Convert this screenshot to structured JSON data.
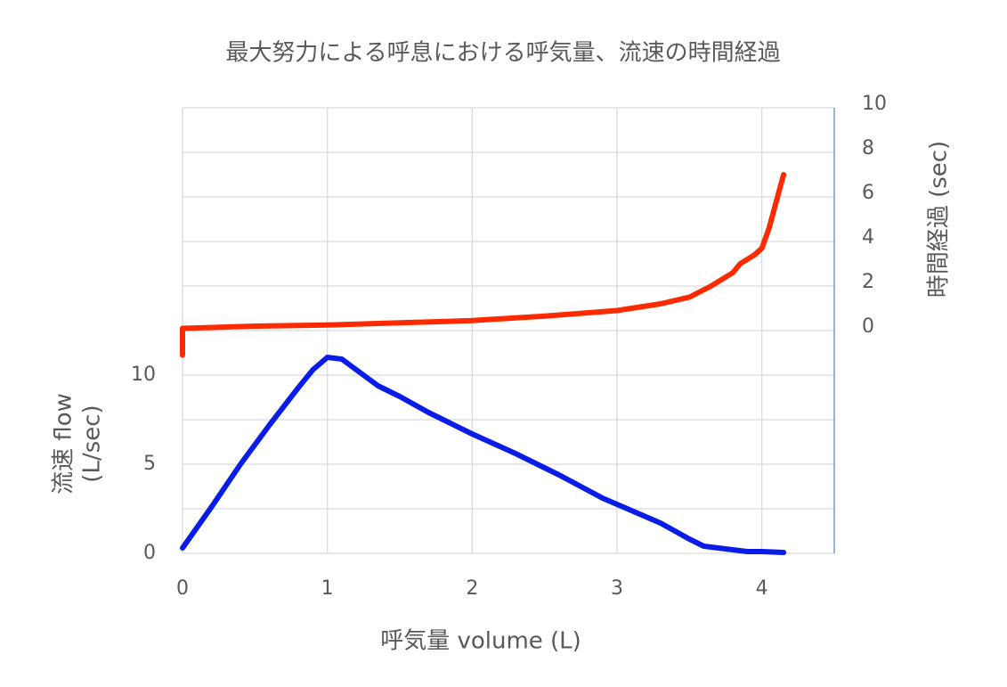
{
  "chart_data": {
    "type": "line",
    "title": "最大努力による呼息における呼気量、流速の時間経過",
    "x_label": "呼気量 volume (L)",
    "y_label": [
      "流速 flow",
      "(L/sec)"
    ],
    "y2_label": "時間経過 (sec)",
    "xlim": [
      0,
      4.5
    ],
    "xticks": [
      0,
      1,
      2,
      3,
      4
    ],
    "ylim": [
      0,
      25
    ],
    "yticks": [
      0,
      5,
      10
    ],
    "ygrid": [
      0,
      2.5,
      5,
      7.5,
      10,
      12.5,
      15,
      17.5,
      20,
      22.5,
      25
    ],
    "y2lim": [
      -10,
      10
    ],
    "y2ticks": [
      0,
      2,
      4,
      6,
      8,
      10
    ],
    "grid": true,
    "series": [
      {
        "color": "#0a1de8",
        "axis": "y",
        "x": [
          0,
          0.2,
          0.4,
          0.6,
          0.8,
          0.9,
          1.0,
          1.1,
          1.2,
          1.35,
          1.5,
          1.7,
          2.0,
          2.3,
          2.6,
          2.9,
          3.1,
          3.3,
          3.5,
          3.6,
          3.8,
          3.9,
          4.0,
          4.15
        ],
        "values": [
          0.3,
          2.6,
          5.0,
          7.2,
          9.3,
          10.3,
          11.0,
          10.9,
          10.3,
          9.4,
          8.8,
          7.9,
          6.7,
          5.6,
          4.4,
          3.1,
          2.4,
          1.7,
          0.8,
          0.4,
          0.2,
          0.1,
          0.1,
          0.05
        ]
      },
      {
        "color": "#ff2a00",
        "axis": "y2",
        "x": [
          0,
          0,
          0.5,
          1,
          1.5,
          2,
          2.5,
          3,
          3.3,
          3.5,
          3.65,
          3.8,
          3.85,
          3.95,
          4.0,
          4.05,
          4.1,
          4.15
        ],
        "values": [
          -1.1,
          0.1,
          0.2,
          0.25,
          0.35,
          0.45,
          0.65,
          0.9,
          1.2,
          1.5,
          2.0,
          2.6,
          3.0,
          3.4,
          3.7,
          4.6,
          5.8,
          7.0
        ]
      }
    ]
  }
}
